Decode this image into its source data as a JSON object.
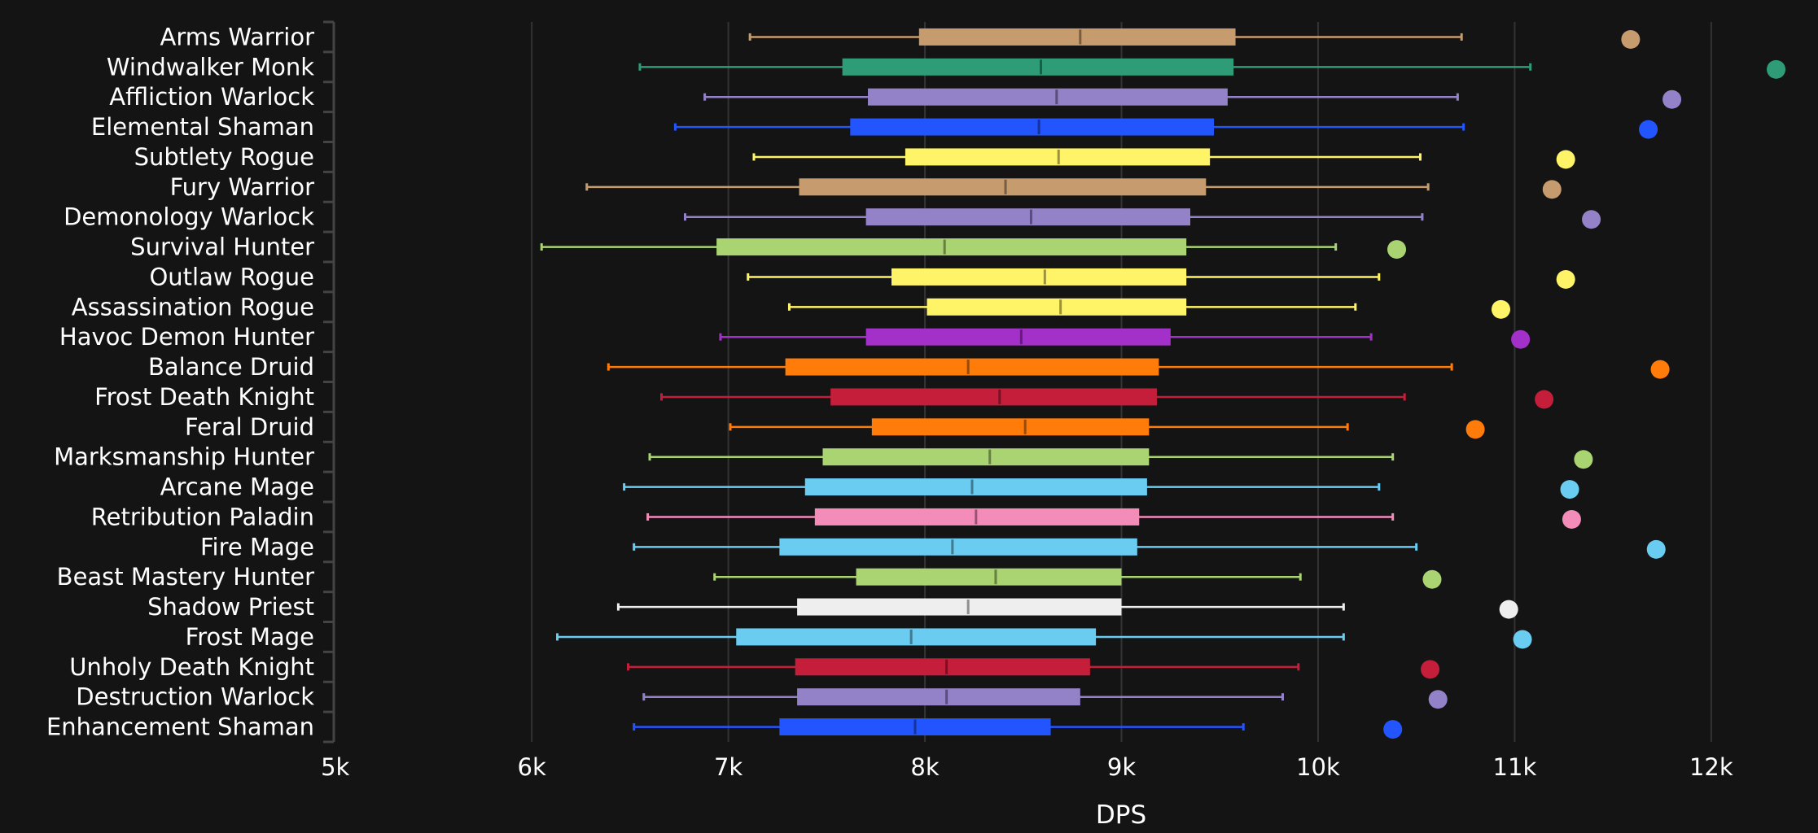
{
  "chart_data": {
    "type": "box",
    "title": "",
    "xlabel": "DPS",
    "ylabel": "",
    "xlim": [
      5000,
      12000
    ],
    "x_ticks": [
      5000,
      6000,
      7000,
      8000,
      9000,
      10000,
      11000,
      12000
    ],
    "x_tick_labels": [
      "5k",
      "6k",
      "7k",
      "8k",
      "9k",
      "10k",
      "11k",
      "12k"
    ],
    "grid": "vertical",
    "background": "#141414",
    "categories": [
      "Arms Warrior",
      "Windwalker Monk",
      "Affliction Warlock",
      "Elemental Shaman",
      "Subtlety Rogue",
      "Fury Warrior",
      "Demonology Warlock",
      "Survival Hunter",
      "Outlaw Rogue",
      "Assassination Rogue",
      "Havoc Demon Hunter",
      "Balance Druid",
      "Frost Death Knight",
      "Feral Druid",
      "Marksmanship Hunter",
      "Arcane Mage",
      "Retribution Paladin",
      "Fire Mage",
      "Beast Mastery Hunter",
      "Shadow Priest",
      "Frost Mage",
      "Unholy Death Knight",
      "Destruction Warlock",
      "Enhancement Shaman"
    ],
    "colors": [
      "#C69B6D",
      "#2D9C77",
      "#9482C9",
      "#2355FF",
      "#FFF468",
      "#C69B6D",
      "#9482C9",
      "#AAD372",
      "#FFF468",
      "#FFF468",
      "#A330C9",
      "#FF7C0A",
      "#C41E3A",
      "#FF7C0A",
      "#AAD372",
      "#69CCF0",
      "#F48CBA",
      "#69CCF0",
      "#AAD372",
      "#EEEEEE",
      "#69CCF0",
      "#C41E3A",
      "#9482C9",
      "#2355FF"
    ],
    "min": [
      7110,
      6550,
      6880,
      6730,
      7130,
      6280,
      6780,
      6050,
      7100,
      7310,
      6960,
      6390,
      6660,
      7010,
      6600,
      6470,
      6590,
      6520,
      6930,
      6440,
      6130,
      6490,
      6570,
      6520
    ],
    "q1": [
      7970,
      7580,
      7710,
      7620,
      7900,
      7360,
      7700,
      6940,
      7830,
      8010,
      7700,
      7290,
      7520,
      7730,
      7480,
      7390,
      7440,
      7260,
      7650,
      7350,
      7040,
      7340,
      7350,
      7260
    ],
    "median": [
      8790,
      8590,
      8670,
      8580,
      8680,
      8410,
      8540,
      8100,
      8610,
      8690,
      8490,
      8220,
      8380,
      8510,
      8330,
      8240,
      8260,
      8140,
      8360,
      8220,
      7930,
      8110,
      8110,
      7950
    ],
    "q3": [
      9580,
      9570,
      9540,
      9470,
      9450,
      9430,
      9350,
      9330,
      9330,
      9330,
      9250,
      9190,
      9180,
      9140,
      9140,
      9130,
      9090,
      9080,
      9000,
      9000,
      8870,
      8840,
      8790,
      8640
    ],
    "max": [
      10730,
      11080,
      10710,
      10740,
      10520,
      10560,
      10530,
      10090,
      10310,
      10190,
      10270,
      10680,
      10440,
      10150,
      10380,
      10310,
      10380,
      10500,
      9910,
      10130,
      10130,
      9900,
      9820,
      9620
    ],
    "marker": [
      11590,
      12330,
      11800,
      11680,
      11260,
      11190,
      11390,
      10400,
      11260,
      10930,
      11030,
      11740,
      11150,
      10800,
      11350,
      11280,
      11290,
      11720,
      10580,
      10970,
      11040,
      10570,
      10610,
      10380
    ]
  }
}
